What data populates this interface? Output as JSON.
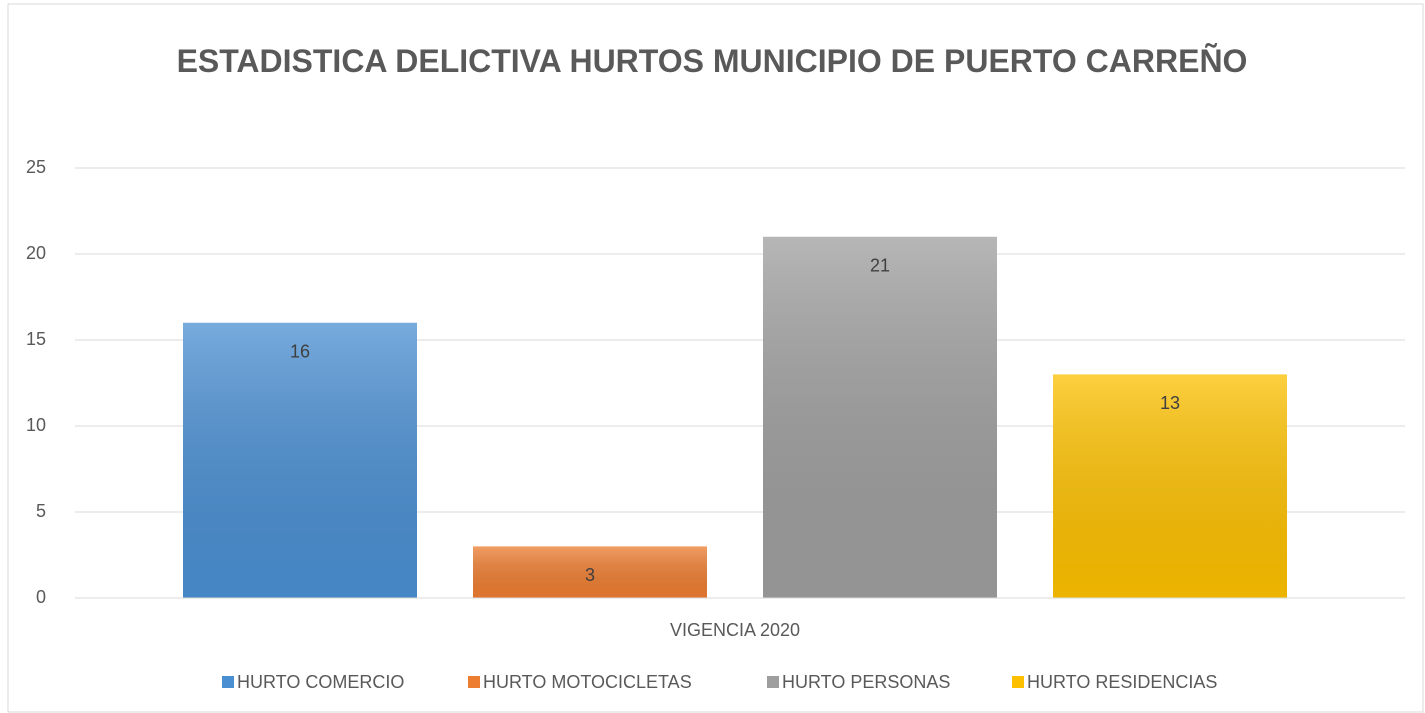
{
  "chart_data": {
    "type": "bar",
    "title": "ESTADISTICA DELICTIVA HURTOS MUNICIPIO DE PUERTO CARREÑO",
    "categories": [
      "VIGENCIA 2020"
    ],
    "series": [
      {
        "name": "HURTO COMERCIO",
        "color": "#4a8fd2",
        "values": [
          16
        ]
      },
      {
        "name": "HURTO MOTOCICLETAS",
        "color": "#ed7d31",
        "values": [
          3
        ]
      },
      {
        "name": "HURTO PERSONAS",
        "color": "#9e9e9e",
        "values": [
          21
        ]
      },
      {
        "name": "HURTO RESIDENCIAS",
        "color": "#fcc000",
        "values": [
          13
        ]
      }
    ],
    "ylim": [
      0,
      25
    ],
    "yticks": [
      0,
      5,
      10,
      15,
      20,
      25
    ],
    "grid": true,
    "legend": "bottom"
  }
}
